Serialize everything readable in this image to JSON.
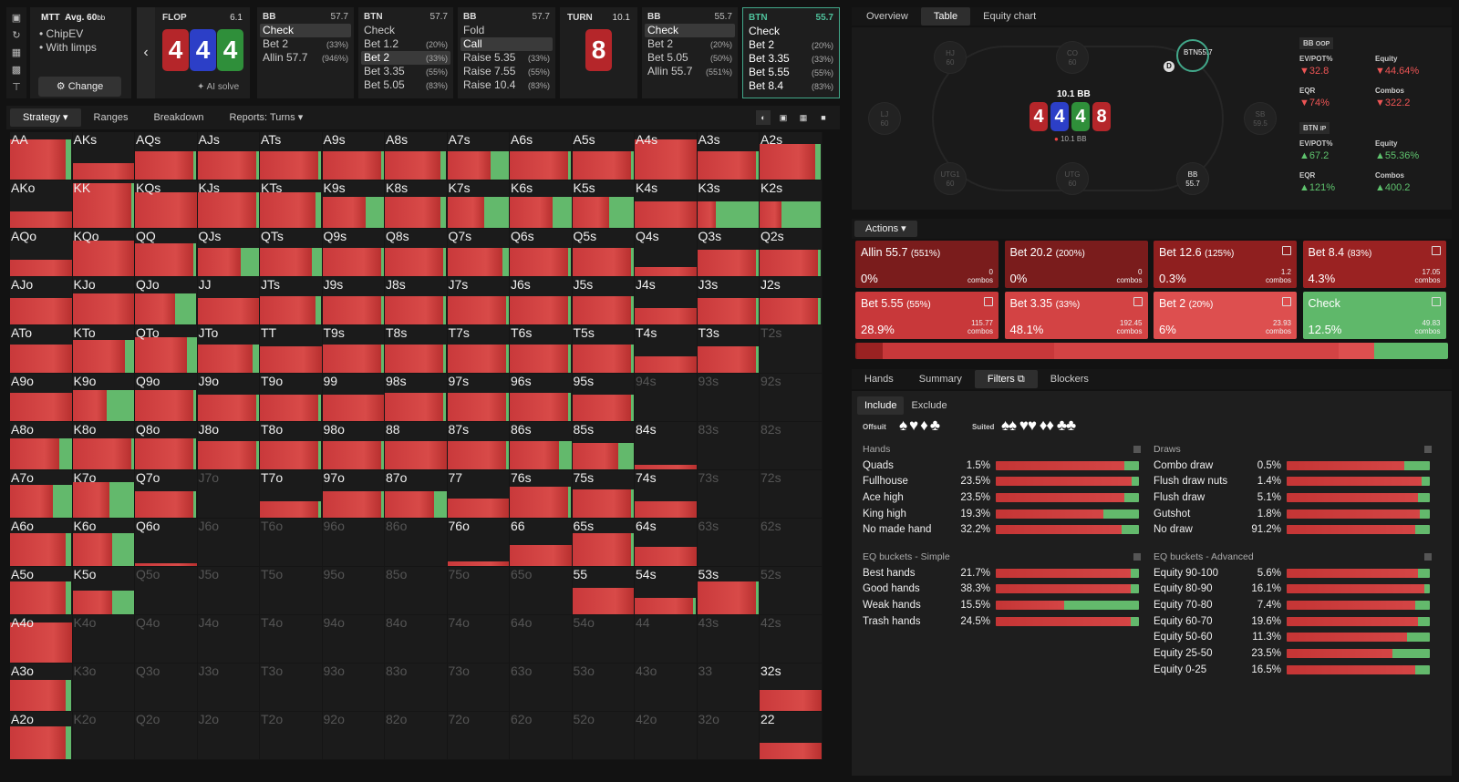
{
  "toolbar": {
    "icons": [
      "bookmark-icon",
      "history-icon",
      "save-icon",
      "car-icon",
      "align-icon"
    ]
  },
  "setup": {
    "title": "MTT",
    "avg": "Avg. 60",
    "avg_unit": "bb",
    "items": [
      "ChipEV",
      "With limps"
    ],
    "change_label": "Change"
  },
  "flop": {
    "label": "FLOP",
    "pot": "6.1",
    "cards": [
      "4",
      "4",
      "4"
    ],
    "ai": "AI solve"
  },
  "columns": [
    {
      "pos": "BB",
      "stack": "57.7",
      "actions": [
        {
          "l": "Check",
          "p": "",
          "sel": true
        },
        {
          "l": "Bet 2",
          "p": "(33%)"
        },
        {
          "l": "Allin 57.7",
          "p": "(946%)"
        }
      ]
    },
    {
      "pos": "BTN",
      "stack": "57.7",
      "actions": [
        {
          "l": "Check",
          "p": ""
        },
        {
          "l": "Bet 1.2",
          "p": "(20%)"
        },
        {
          "l": "Bet 2",
          "p": "(33%)",
          "sel": true
        },
        {
          "l": "Bet 3.35",
          "p": "(55%)"
        },
        {
          "l": "Bet 5.05",
          "p": "(83%)"
        }
      ]
    },
    {
      "pos": "BB",
      "stack": "57.7",
      "actions": [
        {
          "l": "Fold",
          "p": ""
        },
        {
          "l": "Call",
          "p": "",
          "sel": true
        },
        {
          "l": "Raise 5.35",
          "p": "(33%)"
        },
        {
          "l": "Raise 7.55",
          "p": "(55%)"
        },
        {
          "l": "Raise 10.4",
          "p": "(83%)"
        }
      ]
    }
  ],
  "turn": {
    "label": "TURN",
    "pot": "10.1",
    "card": "8"
  },
  "col_bb2": {
    "pos": "BB",
    "stack": "55.7",
    "actions": [
      {
        "l": "Check",
        "p": "",
        "sel": true
      },
      {
        "l": "Bet 2",
        "p": "(20%)"
      },
      {
        "l": "Bet 5.05",
        "p": "(50%)"
      },
      {
        "l": "Allin 55.7",
        "p": "(551%)"
      }
    ]
  },
  "col_btn2": {
    "pos": "BTN",
    "stack": "55.7",
    "actions": [
      {
        "l": "Check",
        "p": ""
      },
      {
        "l": "Bet 2",
        "p": "(20%)"
      },
      {
        "l": "Bet 3.35",
        "p": "(33%)"
      },
      {
        "l": "Bet 5.55",
        "p": "(55%)"
      },
      {
        "l": "Bet 8.4",
        "p": "(83%)"
      }
    ]
  },
  "left_tabs": [
    "Strategy",
    "Ranges",
    "Breakdown",
    "Reports: Turns"
  ],
  "right_tabs": [
    "Overview",
    "Table",
    "Equity chart"
  ],
  "table": {
    "pot": "10.1 BB",
    "pot_small": "10.1 BB",
    "board": [
      "4",
      "4",
      "4",
      "8"
    ],
    "seats": [
      {
        "n": "HJ",
        "s": "60"
      },
      {
        "n": "CO",
        "s": "60"
      },
      {
        "n": "BTN",
        "s": "55.7"
      },
      {
        "n": "LJ",
        "s": "60"
      },
      {
        "n": "SB",
        "s": "59.5"
      },
      {
        "n": "UTG1",
        "s": "60"
      },
      {
        "n": "UTG",
        "s": "60"
      },
      {
        "n": "BB",
        "s": "55.7"
      }
    ]
  },
  "stats": {
    "bb": {
      "title": "BB",
      "tag": "OOP",
      "evpot": "32.8",
      "equity": "44.64%",
      "eqr": "74%",
      "combos": "322.2"
    },
    "btn": {
      "title": "BTN",
      "tag": "IP",
      "evpot": "67.2",
      "equity": "55.36%",
      "eqr": "121%",
      "combos": "400.2"
    },
    "labels": {
      "evpot": "EV/POT%",
      "equity": "Equity",
      "eqr": "EQR",
      "combos": "Combos"
    }
  },
  "actions_label": "Actions",
  "actions": [
    {
      "name": "Allin 55.7",
      "pct": "(551%)",
      "freq": "0%",
      "combos": "0",
      "color": "#7a1c1c"
    },
    {
      "name": "Bet 20.2",
      "pct": "(200%)",
      "freq": "0%",
      "combos": "0",
      "color": "#7a1c1c"
    },
    {
      "name": "Bet 12.6",
      "pct": "(125%)",
      "freq": "0.3%",
      "combos": "1.2",
      "color": "#8f1f1f"
    },
    {
      "name": "Bet 8.4",
      "pct": "(83%)",
      "freq": "4.3%",
      "combos": "17.05",
      "color": "#9a2222"
    },
    {
      "name": "Bet 5.55",
      "pct": "(55%)",
      "freq": "28.9%",
      "combos": "115.77",
      "color": "#c8383a"
    },
    {
      "name": "Bet 3.35",
      "pct": "(33%)",
      "freq": "48.1%",
      "combos": "192.45",
      "color": "#d34344"
    },
    {
      "name": "Bet 2",
      "pct": "(20%)",
      "freq": "6%",
      "combos": "23.93",
      "color": "#dd4f4f"
    },
    {
      "name": "Check",
      "pct": "",
      "freq": "12.5%",
      "combos": "49.83",
      "color": "#5fb86a"
    }
  ],
  "combos_word": "combos",
  "lower_tabs": [
    "Hands",
    "Summary",
    "Filters",
    "Blockers"
  ],
  "incl": [
    "Include",
    "Exclude"
  ],
  "offsuit": "Offsuit",
  "suited": "Suited",
  "hands": {
    "title": "Hands",
    "rows": [
      {
        "l": "Quads",
        "p": "1.5%",
        "r": 0.9
      },
      {
        "l": "Fullhouse",
        "p": "23.5%",
        "r": 0.95
      },
      {
        "l": "Ace high",
        "p": "23.5%",
        "r": 0.9
      },
      {
        "l": "King high",
        "p": "19.3%",
        "r": 0.75
      },
      {
        "l": "No made hand",
        "p": "32.2%",
        "r": 0.88
      }
    ]
  },
  "draws": {
    "title": "Draws",
    "rows": [
      {
        "l": "Combo draw",
        "p": "0.5%",
        "r": 0.82
      },
      {
        "l": "Flush draw nuts",
        "p": "1.4%",
        "r": 0.94
      },
      {
        "l": "Flush draw",
        "p": "5.1%",
        "r": 0.92
      },
      {
        "l": "Gutshot",
        "p": "1.8%",
        "r": 0.93
      },
      {
        "l": "No draw",
        "p": "91.2%",
        "r": 0.9
      }
    ]
  },
  "eqs": {
    "title": "EQ buckets - Simple",
    "rows": [
      {
        "l": "Best hands",
        "p": "21.7%",
        "r": 0.94
      },
      {
        "l": "Good hands",
        "p": "38.3%",
        "r": 0.94
      },
      {
        "l": "Weak hands",
        "p": "15.5%",
        "r": 0.48
      },
      {
        "l": "Trash hands",
        "p": "24.5%",
        "r": 0.94
      }
    ]
  },
  "eqa": {
    "title": "EQ buckets - Advanced",
    "rows": [
      {
        "l": "Equity 90-100",
        "p": "5.6%",
        "r": 0.92
      },
      {
        "l": "Equity 80-90",
        "p": "16.1%",
        "r": 0.96
      },
      {
        "l": "Equity 70-80",
        "p": "7.4%",
        "r": 0.9
      },
      {
        "l": "Equity 60-70",
        "p": "19.6%",
        "r": 0.92
      },
      {
        "l": "Equity 50-60",
        "p": "11.3%",
        "r": 0.84
      },
      {
        "l": "Equity 25-50",
        "p": "23.5%",
        "r": 0.74
      },
      {
        "l": "Equity 0-25",
        "p": "16.5%",
        "r": 0.9
      }
    ]
  },
  "matrix": [
    "AA",
    "AKs",
    "AQs",
    "AJs",
    "ATs",
    "A9s",
    "A8s",
    "A7s",
    "A6s",
    "A5s",
    "A4s",
    "A3s",
    "A2s",
    "AKo",
    "KK",
    "KQs",
    "KJs",
    "KTs",
    "K9s",
    "K8s",
    "K7s",
    "K6s",
    "K5s",
    "K4s",
    "K3s",
    "K2s",
    "AQo",
    "KQo",
    "QQ",
    "QJs",
    "QTs",
    "Q9s",
    "Q8s",
    "Q7s",
    "Q6s",
    "Q5s",
    "Q4s",
    "Q3s",
    "Q2s",
    "AJo",
    "KJo",
    "QJo",
    "JJ",
    "JTs",
    "J9s",
    "J8s",
    "J7s",
    "J6s",
    "J5s",
    "J4s",
    "J3s",
    "J2s",
    "ATo",
    "KTo",
    "QTo",
    "JTo",
    "TT",
    "T9s",
    "T8s",
    "T7s",
    "T6s",
    "T5s",
    "T4s",
    "T3s",
    "T2s",
    "A9o",
    "K9o",
    "Q9o",
    "J9o",
    "T9o",
    "99",
    "98s",
    "97s",
    "96s",
    "95s",
    "94s",
    "93s",
    "92s",
    "A8o",
    "K8o",
    "Q8o",
    "J8o",
    "T8o",
    "98o",
    "88",
    "87s",
    "86s",
    "85s",
    "84s",
    "83s",
    "82s",
    "A7o",
    "K7o",
    "Q7o",
    "J7o",
    "T7o",
    "97o",
    "87o",
    "77",
    "76s",
    "75s",
    "74s",
    "73s",
    "72s",
    "A6o",
    "K6o",
    "Q6o",
    "J6o",
    "T6o",
    "96o",
    "86o",
    "76o",
    "66",
    "65s",
    "64s",
    "63s",
    "62s",
    "A5o",
    "K5o",
    "Q5o",
    "J5o",
    "T5o",
    "95o",
    "85o",
    "75o",
    "65o",
    "55",
    "54s",
    "53s",
    "52s",
    "A4o",
    "K4o",
    "Q4o",
    "J4o",
    "T4o",
    "94o",
    "84o",
    "74o",
    "64o",
    "54o",
    "44",
    "43s",
    "42s",
    "A3o",
    "K3o",
    "Q3o",
    "J3o",
    "T3o",
    "93o",
    "83o",
    "73o",
    "63o",
    "53o",
    "43o",
    "33",
    "32s",
    "A2o",
    "K2o",
    "Q2o",
    "J2o",
    "T2o",
    "92o",
    "82o",
    "72o",
    "62o",
    "52o",
    "42o",
    "32o",
    "22"
  ],
  "matrix_fill": [
    [
      0.85,
      0.35,
      0.6,
      0.6,
      0.6,
      0.6,
      0.6,
      0.6,
      0.6,
      0.6,
      0.85,
      0.6,
      0.75
    ],
    [
      0.35,
      0.95,
      0.75,
      0.75,
      0.75,
      0.65,
      0.65,
      0.65,
      0.65,
      0.65,
      0.55,
      0.55,
      0.55
    ],
    [
      0.35,
      0.75,
      0.7,
      0.6,
      0.6,
      0.6,
      0.6,
      0.6,
      0.6,
      0.6,
      0.2,
      0.55,
      0.55
    ],
    [
      0.55,
      0.65,
      0.65,
      0.55,
      0.6,
      0.6,
      0.6,
      0.6,
      0.6,
      0.6,
      0.35,
      0.55,
      0.55
    ],
    [
      0.6,
      0.7,
      0.75,
      0.6,
      0.55,
      0.6,
      0.6,
      0.6,
      0.6,
      0.6,
      0.35,
      0.55,
      0
    ],
    [
      0.6,
      0.65,
      0.65,
      0.55,
      0.55,
      0.55,
      0.6,
      0.6,
      0.6,
      0.55,
      0,
      0,
      0
    ],
    [
      0.65,
      0.65,
      0.65,
      0.6,
      0.6,
      0.6,
      0.6,
      0.6,
      0.6,
      0.55,
      0.1,
      0,
      0
    ],
    [
      0.7,
      0.75,
      0.55,
      0,
      0.35,
      0.55,
      0.55,
      0.4,
      0.65,
      0.6,
      0.35,
      0,
      0
    ],
    [
      0.7,
      0.7,
      0.05,
      0,
      0,
      0,
      0,
      0.1,
      0.45,
      0.7,
      0.4,
      0,
      0
    ],
    [
      0.7,
      0.5,
      0,
      0,
      0,
      0,
      0,
      0,
      0,
      0.55,
      0.35,
      0.7,
      0
    ],
    [
      0.85,
      0,
      0,
      0,
      0,
      0,
      0,
      0,
      0,
      0,
      0,
      0,
      0
    ],
    [
      0.65,
      0,
      0,
      0,
      0,
      0,
      0,
      0,
      0,
      0,
      0,
      0,
      0.45
    ],
    [
      0.7,
      0,
      0,
      0,
      0,
      0,
      0,
      0,
      0,
      0,
      0,
      0,
      0.35
    ]
  ],
  "matrix_green": [
    [
      0.1,
      0,
      0.05,
      0.05,
      0.05,
      0.05,
      0.1,
      0.3,
      0.05,
      0.05,
      0,
      0.05,
      0.1
    ],
    [
      0,
      0.05,
      0,
      0.05,
      0.1,
      0.3,
      0.1,
      0.4,
      0.3,
      0.4,
      0,
      0.7,
      0.65
    ],
    [
      0,
      0,
      0.05,
      0.3,
      0.15,
      0.05,
      0.05,
      0.1,
      0.05,
      0.05,
      0,
      0.05,
      0.05
    ],
    [
      0,
      0,
      0.35,
      0,
      0.1,
      0.05,
      0.05,
      0.05,
      0.05,
      0.05,
      0,
      0.05,
      0.05
    ],
    [
      0,
      0.15,
      0.15,
      0.1,
      0,
      0.05,
      0.05,
      0.05,
      0.05,
      0.05,
      0,
      0.05,
      0
    ],
    [
      0,
      0.45,
      0.05,
      0.05,
      0.05,
      0,
      0.05,
      0.05,
      0.05,
      0.05,
      0,
      0,
      0
    ],
    [
      0.2,
      0.05,
      0.05,
      0.05,
      0.05,
      0.05,
      0,
      0.05,
      0.2,
      0.25,
      0,
      0,
      0
    ],
    [
      0.3,
      0.4,
      0.05,
      0,
      0.05,
      0.05,
      0.2,
      0,
      0.05,
      0.05,
      0,
      0,
      0
    ],
    [
      0.1,
      0.35,
      0,
      0,
      0,
      0,
      0,
      0,
      0,
      0.05,
      0,
      0,
      0
    ],
    [
      0.1,
      0.35,
      0,
      0,
      0,
      0,
      0,
      0,
      0,
      0,
      0.05,
      0.05,
      0
    ],
    [
      0,
      0,
      0,
      0,
      0,
      0,
      0,
      0,
      0,
      0,
      0,
      0,
      0
    ],
    [
      0.1,
      0,
      0,
      0,
      0,
      0,
      0,
      0,
      0,
      0,
      0,
      0,
      0
    ],
    [
      0.1,
      0,
      0,
      0,
      0,
      0,
      0,
      0,
      0,
      0,
      0,
      0,
      0
    ]
  ]
}
